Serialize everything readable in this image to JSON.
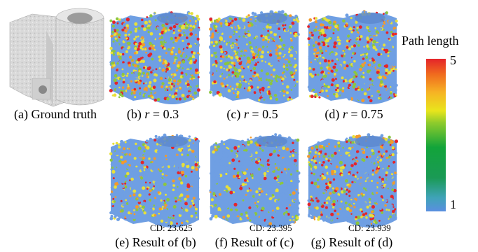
{
  "panels": {
    "a": {
      "caption_prefix": "(a) Ground truth"
    },
    "b": {
      "caption_prefix": "(b) ",
      "var": "r",
      "value": " = 0.3"
    },
    "c": {
      "caption_prefix": "(c) ",
      "var": "r",
      "value": " = 0.5"
    },
    "d": {
      "caption_prefix": "(d) ",
      "var": "r",
      "value": " = 0.75"
    },
    "e": {
      "caption": "(e) Result of (b)",
      "cd": "CD: 23.625"
    },
    "f": {
      "caption": "(f) Result of (c)",
      "cd": "CD: 23.395"
    },
    "g": {
      "caption": "(g) Result of (d)",
      "cd": "CD: 23.939"
    }
  },
  "colorbar": {
    "title": "Path length",
    "max_label": "5",
    "min_label": "1",
    "colors": {
      "low": "#5a8fe0",
      "mid": "#12a43a",
      "high": "#e4242a"
    }
  }
}
